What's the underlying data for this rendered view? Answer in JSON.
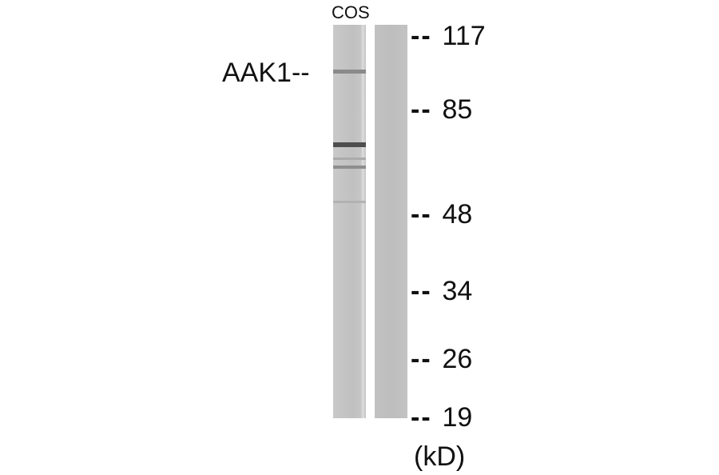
{
  "lane_labels": [
    "COS"
  ],
  "target": {
    "label": "AAK1--"
  },
  "markers": [
    {
      "label": "117",
      "dash": "--"
    },
    {
      "label": "85",
      "dash": "--"
    },
    {
      "label": "48",
      "dash": "--"
    },
    {
      "label": "34",
      "dash": "--"
    },
    {
      "label": "26",
      "dash": "--"
    },
    {
      "label": "19",
      "dash": "--"
    }
  ],
  "unit": "(kD)"
}
